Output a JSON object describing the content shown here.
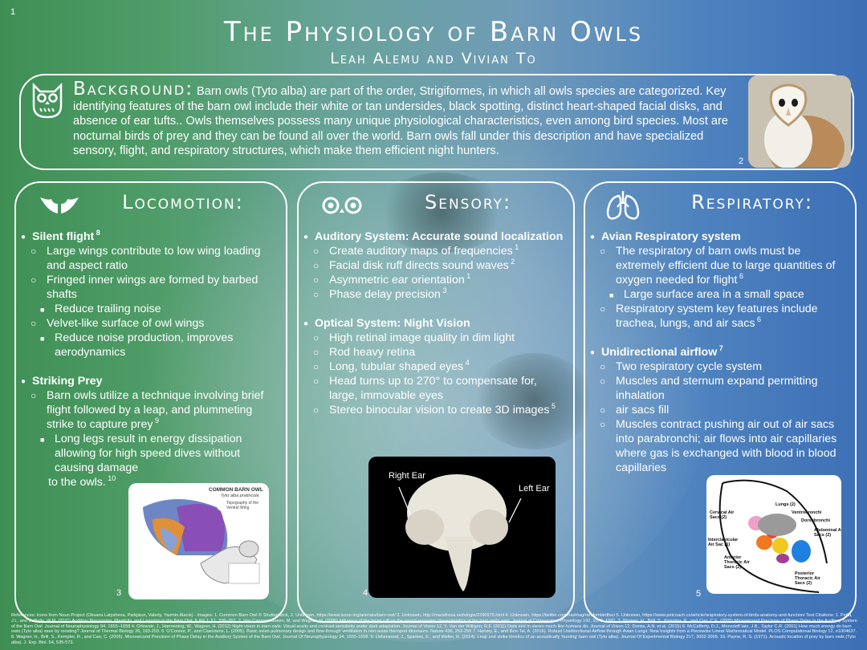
{
  "page_number": "1",
  "title": "The Physiology of Barn Owls",
  "authors": "Leah Alemu and Vivian To",
  "background": {
    "heading": "Background:",
    "text": "Barn owls (Tyto alba) are part of the order, Strigiformes, in which all owls species are categorized. Key identifying features of the barn owl include their white or tan undersides, black spotting, distinct heart-shaped facial disks, and absence of ear tufts.. Owls themselves possess many unique physiological characteristics, even among bird species. Most are nocturnal birds of prey and they can be found all over the world. Barn owls fall under this description and have specialized sensory, flight, and respiratory structures, which make them efficient night hunters.",
    "photo_number": "2"
  },
  "locomotion": {
    "heading": "Locomotion:",
    "items": [
      {
        "level": 1,
        "text": "Silent flight",
        "sup": "8"
      },
      {
        "level": 2,
        "text": "Large wings contribute to low wing loading and aspect ratio",
        "sup": ""
      },
      {
        "level": 2,
        "text": "Fringed inner wings are formed by barbed shafts",
        "sup": ""
      },
      {
        "level": 3,
        "text": "Reduce trailing noise",
        "sup": ""
      },
      {
        "level": 2,
        "text": "Velvet-like surface of owl wings",
        "sup": ""
      },
      {
        "level": 3,
        "text": "Reduce noise production, improves aerodynamics",
        "sup": ""
      },
      {
        "level": 0,
        "text": "",
        "sup": ""
      },
      {
        "level": 1,
        "text": "Striking Prey",
        "sup": ""
      },
      {
        "level": 2,
        "text": "Barn owls utilize a technique involving brief flight followed by a leap, and plummeting strike to capture prey",
        "sup": "9"
      },
      {
        "level": 3,
        "text": "Long legs result in energy dissipation allowing for high speed dives without causing damage",
        "sup": ""
      },
      {
        "level": 4,
        "text": "to the owls.",
        "sup": "10"
      }
    ],
    "figure": {
      "title": "COMMON BARN OWL",
      "subtitle": "Tyto alba pratincola",
      "caption": "Topography of the Ventral Wing",
      "number": "3"
    }
  },
  "sensory": {
    "heading": "Sensory:",
    "items": [
      {
        "level": 1,
        "text": "Auditory System: Accurate sound localization",
        "sup": ""
      },
      {
        "level": 2,
        "text": "Create auditory maps of frequencies",
        "sup": "1"
      },
      {
        "level": 2,
        "text": "Facial disk ruff directs sound waves",
        "sup": "2"
      },
      {
        "level": 2,
        "text": "Asymmetric ear orientation",
        "sup": "1"
      },
      {
        "level": 2,
        "text": "Phase delay precision",
        "sup": "3"
      },
      {
        "level": 0,
        "text": "",
        "sup": ""
      },
      {
        "level": 1,
        "text": "Optical System: Night Vision",
        "sup": ""
      },
      {
        "level": 2,
        "text": "High retinal image quality in dim light",
        "sup": ""
      },
      {
        "level": 2,
        "text": "Rod heavy retina",
        "sup": ""
      },
      {
        "level": 2,
        "text": "Long, tubular shaped eyes",
        "sup": "4"
      },
      {
        "level": 2,
        "text": "Head turns up to 270° to compensate for, large, immovable eyes",
        "sup": ""
      },
      {
        "level": 2,
        "text": "Stereo binocular vision to create 3D images",
        "sup": "5"
      }
    ],
    "figure": {
      "right_label": "Right Ear",
      "left_label": "Left Ear",
      "number": "4"
    }
  },
  "respiratory": {
    "heading": "Respiratory:",
    "items": [
      {
        "level": 1,
        "text": "Avian Respiratory system",
        "sup": ""
      },
      {
        "level": 2,
        "text": "The respiratory of barn owls must be extremely efficient due to large quantities of oxygen needed for flight",
        "sup": "6"
      },
      {
        "level": 3,
        "text": "Large surface area in a small space",
        "sup": ""
      },
      {
        "level": 2,
        "text": "Respiratory system key features include trachea, lungs, and air sacs",
        "sup": "6"
      },
      {
        "level": 0,
        "text": "",
        "sup": ""
      },
      {
        "level": 1,
        "text": "Unidirectional airflow",
        "sup": "7"
      },
      {
        "level": 2,
        "text": "Two respiratory cycle system",
        "sup": ""
      },
      {
        "level": 2,
        "text": "Muscles and sternum expand permitting inhalation",
        "sup": ""
      },
      {
        "level": 2,
        "text": "air sacs fill",
        "sup": ""
      },
      {
        "level": 2,
        "text": "Muscles contract pushing air out of air sacs into parabronchi; air flows into air capillaries where gas is exchanged with blood in blood",
        "sup": ""
      },
      {
        "level": 4,
        "text": "capillaries",
        "sup": ""
      }
    ],
    "figure": {
      "labels": [
        "Lungs (2)",
        "Ventrobronchi",
        "Dorsobronchi",
        "Cervical Air Sacs (2)",
        "Abdominal Air Sacs (2)",
        "Interclavicular Air Sac (1)",
        "Anterior Thoracic Air Sacs (2)",
        "Posterior Thoracic Air Sacs (2)"
      ],
      "number": "5"
    }
  },
  "references": "References: Icons from Noun Project (Oksana Latysheva, Parkjisun, Valeriy, Yazmin Alanis) - Images: 1. Common Barn Owl © Shutterstock, 2. Unknown, https://www.ivzoo.org/animals/barn-owl/ 3. Unknown, http://marisfresa.net/single/2390976.html 4. Unknown, https://twitter.com/hashtag/randombirdfact 5. Unknown, https://www.petcoach.co/article/respiratory-system-of-birds-anatomy-and-function/ Text Citations: 1. Peña, J.L. and DeBello, W.M. (2011) Auditory Processing, Plasticity, and Learning in the Barn Owl. ILAR J, 51, 338–352. 2. Von Campenhausen, M. and Wagner, H. (2006) Influence of the facial ruff on the sound-receiving characteristics of the barn owl's ears. Journal of Comparative Physiology 192, 1073–1082. 3. Wagner, H., Brill, S., Kempter, R., and Carr, C.E. (2005) Microsecond Precision of Phase Delay in the Auditory System of the Barn Owl. Journal of Neurophysiology 94, 1655–1658 4. Orlowski, J., Harmening, W., Wagner, H. (2012) Night vision in barn owls: Visual acuity and contrast sensitivity under dark adaptation. Journal of Vision 12. 5. Van der Willigen, R.F. (2011) Owls see in stereo much like humans do. Journal of Vision 12. Dreiss, A.N. et al. (2015) 6. McCafferty, D.J., Moncrieff Iain, J.B., Taylor C.R. (2001) How much energy do barn owls (Tyto alba) save by roosting? Journal of Thermal Biology 26, 193-203. 6. O'Connor, P., and Claessens, L. (2005). Basic avian pulmonary design and flow-through ventilation in non-avian theropod dinosaurs. Nature 436, 253-256 7. Harvey, E., and Ben-Tal, A. (2016). Robust Unidirectional Airflow through Avian Lungs: New Insights from a Piecewise Linear Mathematical Model. PLOS Computational Biology 12, e1004637. 8. Wagner, H., Brill, S., Kempter, R., and Carr, C. (2005). Microsecond Precision of Phase Delay in the Auditory System of the Barn Owl. Journal Of Neurophysiology 94, 1655-1658. 9. Usherwood, J., Sparkes, E., and Weller, R. (2014). Leap and strike kinetics of an acoustically 'hunting' barn owl (Tyto alba). Journal Of Experimental Biology 217, 3002-3005. 10. Payne, R. S. (1971). Acoustic location of prey by barn owls (Tyto alba). J. Exp. Biol. 54, 535-573."
}
